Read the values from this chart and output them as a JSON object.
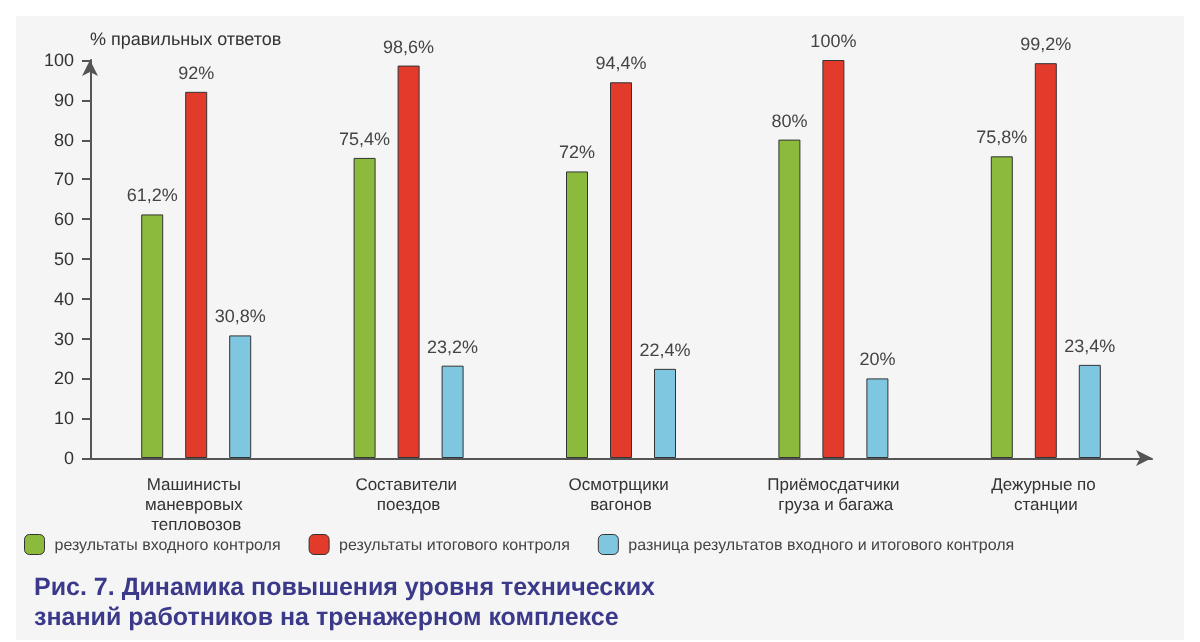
{
  "chart_data": {
    "type": "bar",
    "title": "Рис. 7. Динамика повышения уровня технических знаний работников на тренажерном комплексе",
    "ylabel": "% правильных ответов",
    "categories": [
      "Машинисты маневровых тепловозов",
      "Составители поездов",
      "Осмотрщики вагонов",
      "Приёмосдатчики груза и багажа",
      "Дежурные по станции"
    ],
    "series": [
      {
        "name": "результаты входного контроля",
        "color": "#8cba3c",
        "values": [
          61.2,
          75.4,
          72,
          80,
          75.8
        ],
        "value_labels": [
          "61,2%",
          "75,4%",
          "72%",
          "80%",
          "75,8%"
        ]
      },
      {
        "name": "результаты итогового контроля",
        "color": "#e23b2b",
        "values": [
          92,
          98.6,
          94.4,
          100,
          99.2
        ],
        "value_labels": [
          "92%",
          "98,6%",
          "94,4%",
          "100%",
          "99,2%"
        ]
      },
      {
        "name": "разница результатов входного и итогового контроля",
        "color": "#7fc6e0",
        "values": [
          30.8,
          23.2,
          22.4,
          20,
          23.4
        ],
        "value_labels": [
          "30,8%",
          "23,2%",
          "22,4%",
          "20%",
          "23,4%"
        ]
      }
    ],
    "ylim": [
      0,
      100
    ],
    "yticks": [
      0,
      10,
      20,
      30,
      40,
      50,
      60,
      70,
      80,
      90,
      100
    ],
    "grid": false,
    "legend": "bottom"
  }
}
